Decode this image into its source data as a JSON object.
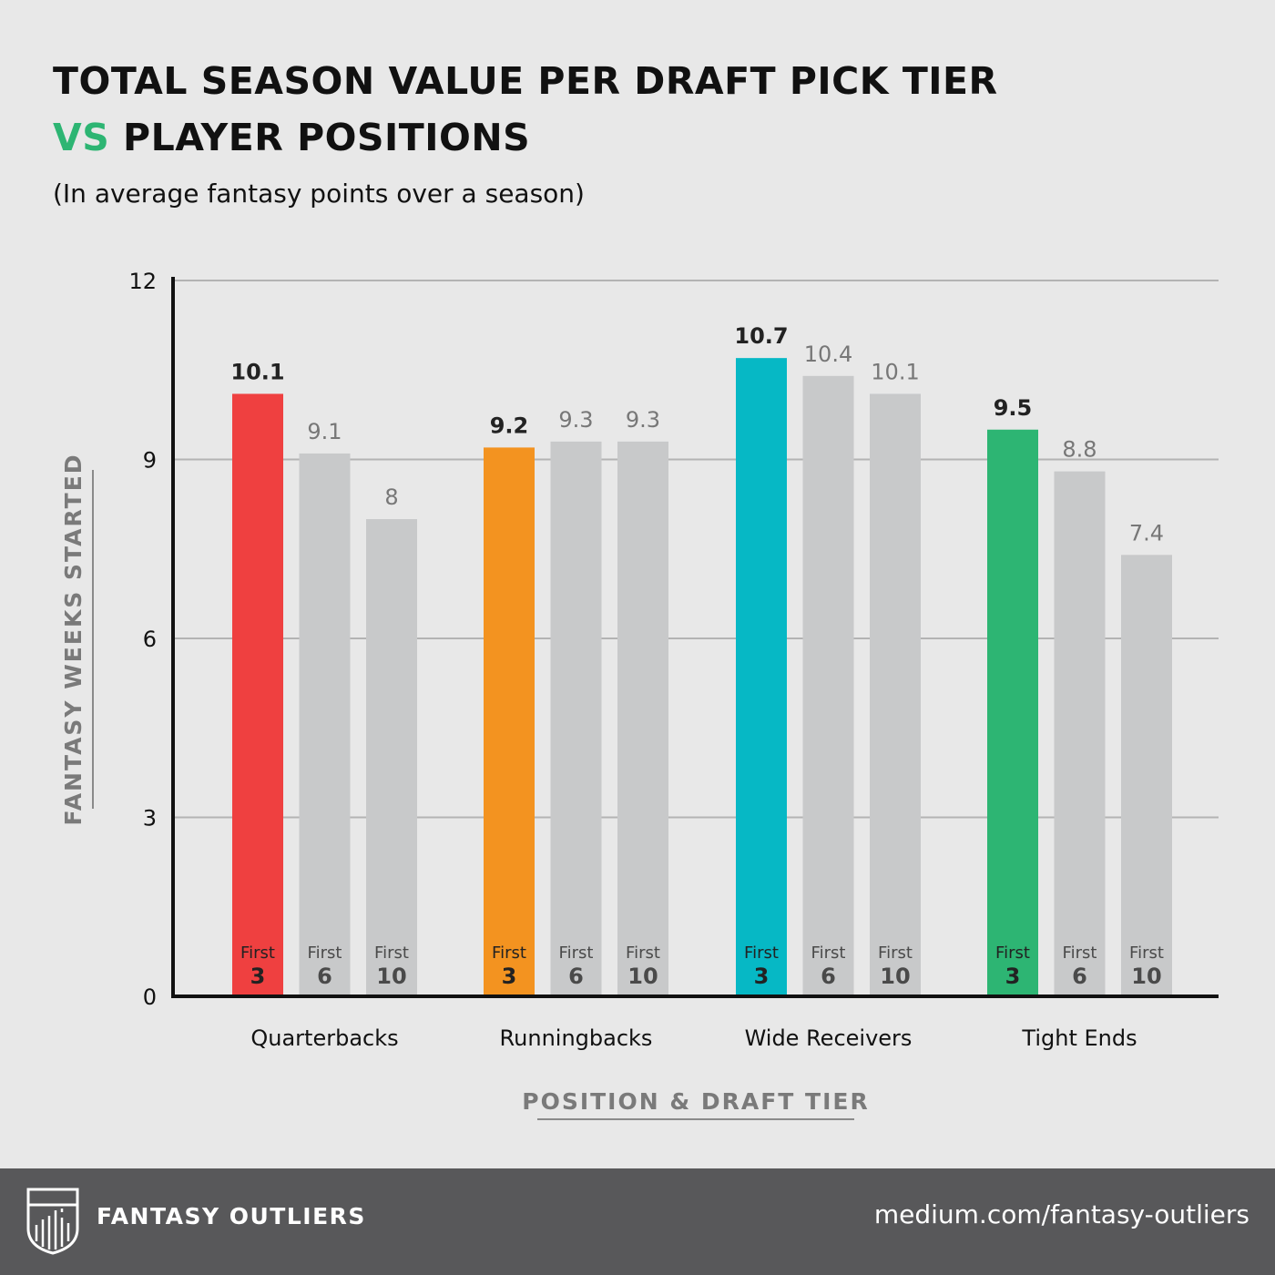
{
  "header": {
    "title_line1": "TOTAL SEASON VALUE PER DRAFT PICK TIER",
    "title_vs": "VS",
    "title_line2": "PLAYER POSITIONS",
    "subtitle": "(In average fantasy points over a season)"
  },
  "chart_data": {
    "type": "bar",
    "title": "TOTAL SEASON VALUE PER DRAFT PICK TIER VS PLAYER POSITIONS",
    "subtitle": "(In average fantasy points over a season)",
    "xlabel": "POSITION & DRAFT TIER",
    "ylabel": "FANTASY WEEKS STARTED",
    "ylim": [
      0,
      12
    ],
    "yticks": [
      "0",
      "3",
      "6",
      "9",
      "12"
    ],
    "grid": true,
    "tier_prefix": "First",
    "groups": [
      {
        "name": "Quarterbacks",
        "accent_color": "#ef4040",
        "bars": [
          {
            "tier": "3",
            "value": 10.1,
            "label": "10.1"
          },
          {
            "tier": "6",
            "value": 9.1,
            "label": "9.1"
          },
          {
            "tier": "10",
            "value": 8,
            "label": "8"
          }
        ]
      },
      {
        "name": "Runningbacks",
        "accent_color": "#f39320",
        "bars": [
          {
            "tier": "3",
            "value": 9.2,
            "label": "9.2"
          },
          {
            "tier": "6",
            "value": 9.3,
            "label": "9.3"
          },
          {
            "tier": "10",
            "value": 9.3,
            "label": "9.3"
          }
        ]
      },
      {
        "name": "Wide Receivers",
        "accent_color": "#06b8c5",
        "bars": [
          {
            "tier": "3",
            "value": 10.7,
            "label": "10.7"
          },
          {
            "tier": "6",
            "value": 10.4,
            "label": "10.4"
          },
          {
            "tier": "10",
            "value": 10.1,
            "label": "10.1"
          }
        ]
      },
      {
        "name": "Tight Ends",
        "accent_color": "#2db573",
        "bars": [
          {
            "tier": "3",
            "value": 9.5,
            "label": "9.5"
          },
          {
            "tier": "6",
            "value": 8.8,
            "label": "8.8"
          },
          {
            "tier": "10",
            "value": 7.4,
            "label": "7.4"
          }
        ]
      }
    ],
    "other_tier_color": "#c8c9ca"
  },
  "footer": {
    "brand": "FANTASY OUTLIERS",
    "url": "medium.com/fantasy-outliers",
    "background_color": "#58585a",
    "logo_icon": "shield-logo-icon"
  }
}
